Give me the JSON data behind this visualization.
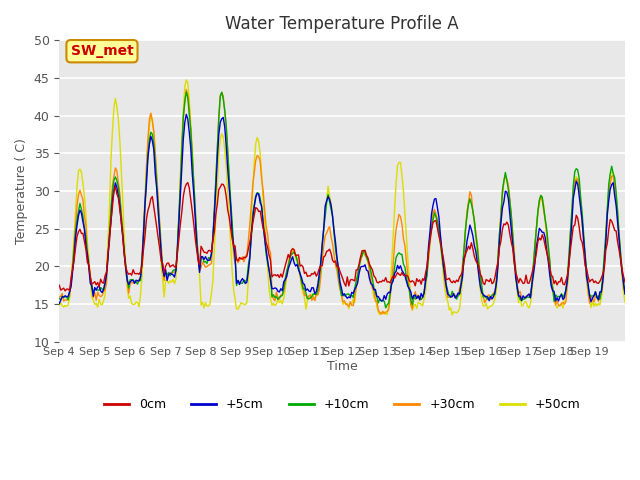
{
  "title": "Water Temperature Profile A",
  "xlabel": "Time",
  "ylabel": "Temperature ( C)",
  "ylim": [
    10,
    50
  ],
  "yticks": [
    10,
    15,
    20,
    25,
    30,
    35,
    40,
    45,
    50
  ],
  "xtick_labels": [
    "Sep 4",
    "Sep 5",
    "Sep 6",
    "Sep 7",
    "Sep 8",
    "Sep 9",
    "Sep 10",
    "Sep 11",
    "Sep 12",
    "Sep 13",
    "Sep 14",
    "Sep 15",
    "Sep 16",
    "Sep 17",
    "Sep 18",
    "Sep 19"
  ],
  "series_colors": [
    "#cc0000",
    "#0000cc",
    "#00aa00",
    "#ff8800",
    "#dddd00"
  ],
  "series_labels": [
    "0cm",
    "+5cm",
    "+10cm",
    "+30cm",
    "+50cm"
  ],
  "annotation_text": "SW_met",
  "annotation_box_color": "#ffff99",
  "annotation_text_color": "#cc0000",
  "annotation_border_color": "#cc8800",
  "background_color": "#e8e8e8",
  "grid_color": "#ffffff",
  "n_days": 16,
  "n_points_per_day": 24,
  "peaks_0": [
    25,
    30,
    29,
    31,
    31,
    28,
    22,
    22,
    22,
    19,
    26,
    23,
    26,
    24,
    26,
    26
  ],
  "peaks_5": [
    27,
    31,
    37,
    40,
    40,
    30,
    21,
    29,
    20,
    20,
    29,
    25,
    30,
    25,
    31,
    31
  ],
  "peaks_10": [
    28,
    32,
    38,
    43,
    43,
    30,
    22,
    29,
    22,
    22,
    27,
    29,
    32,
    29,
    33,
    33
  ],
  "peaks_30": [
    30,
    33,
    40,
    43,
    43,
    35,
    22,
    25,
    22,
    27,
    27,
    29,
    32,
    29,
    32,
    32
  ],
  "peaks_50": [
    33,
    42,
    40,
    45,
    38,
    37,
    22,
    30,
    22,
    34,
    27,
    29,
    32,
    29,
    32,
    33
  ],
  "lows_0": [
    17,
    18,
    19,
    20,
    22,
    21,
    19,
    19,
    18,
    18,
    18,
    18,
    18,
    18,
    18,
    18
  ],
  "lows_5": [
    16,
    17,
    18,
    19,
    21,
    18,
    17,
    17,
    16,
    16,
    16,
    16,
    16,
    16,
    16,
    16
  ],
  "lows_10": [
    16,
    17,
    18,
    19,
    21,
    18,
    16,
    16,
    16,
    15,
    16,
    16,
    16,
    16,
    16,
    16
  ],
  "lows_30": [
    16,
    16,
    18,
    19,
    20,
    21,
    16,
    16,
    15,
    14,
    16,
    16,
    16,
    16,
    15,
    16
  ],
  "lows_50": [
    15,
    15,
    15,
    18,
    15,
    15,
    15,
    16,
    15,
    14,
    15,
    14,
    15,
    15,
    15,
    15
  ]
}
